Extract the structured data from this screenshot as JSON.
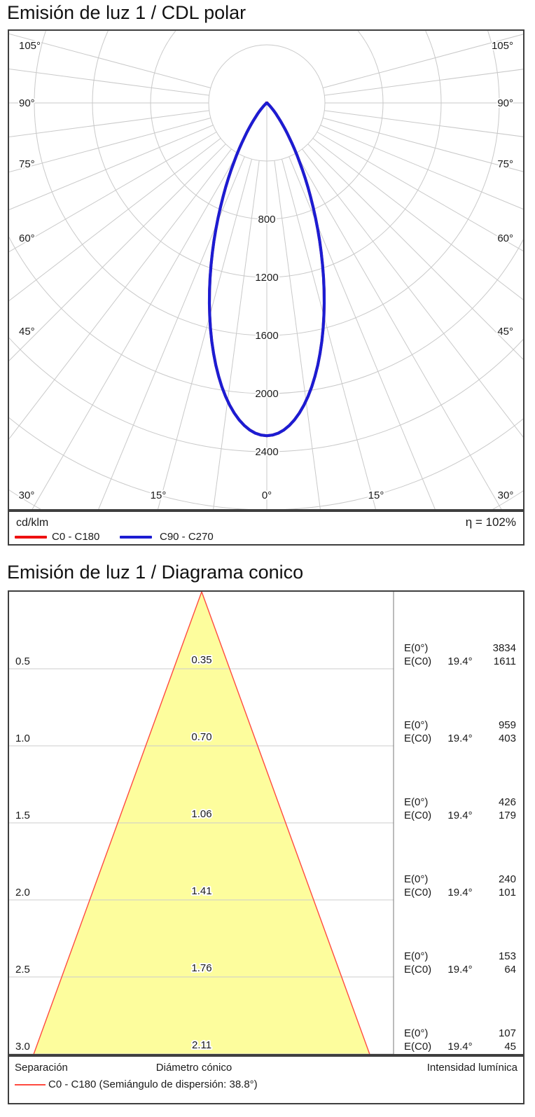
{
  "polar": {
    "title": "Emisión de luz 1 / CDL polar",
    "unit": "cd/klm",
    "efficiency": "η = 102%",
    "legend": [
      {
        "name": "C0 - C180",
        "color": "#ee1111"
      },
      {
        "name": "C90 - C270",
        "color": "#1c1cd2"
      }
    ],
    "angle_labels_side": [
      "105°",
      "90°",
      "75°",
      "60°",
      "45°"
    ],
    "angle_labels_bottom": [
      "30°",
      "15°",
      "0°",
      "15°",
      "30°"
    ],
    "ring_labels": [
      "800",
      "1200",
      "1600",
      "2000",
      "2400"
    ]
  },
  "cone": {
    "title": "Emisión de luz 1 / Diagrama conico",
    "e0_label": "E(0°)",
    "ec0_label": "E(C0)",
    "beam_angle": "19.4°",
    "cone_fill": "#fdfd9d",
    "cone_edge_color": "#ff4a40",
    "rows": [
      {
        "separation": "0.5",
        "diameter": "0.35",
        "e0": "3834",
        "ec0": "1611"
      },
      {
        "separation": "1.0",
        "diameter": "0.70",
        "e0": "959",
        "ec0": "403"
      },
      {
        "separation": "1.5",
        "diameter": "1.06",
        "e0": "426",
        "ec0": "179"
      },
      {
        "separation": "2.0",
        "diameter": "1.41",
        "e0": "240",
        "ec0": "101"
      },
      {
        "separation": "2.5",
        "diameter": "1.76",
        "e0": "153",
        "ec0": "64"
      },
      {
        "separation": "3.0",
        "diameter": "2.11",
        "e0": "107",
        "ec0": "45"
      }
    ],
    "footer": {
      "separation": "Separación",
      "diameter": "Diámetro cónico",
      "intensity": "Intensidad lumínica"
    },
    "legend": "C0 - C180 (Semiángulo de dispersión: 38.8°)"
  },
  "chart_data": [
    {
      "type": "line",
      "subtype": "polar-luminous-intensity",
      "title": "Emisión de luz 1 / CDL polar",
      "unit": "cd/klm",
      "efficiency_label": "η = 102%",
      "radial_ticks": [
        400,
        800,
        1200,
        1600,
        2000,
        2400,
        2800,
        3200
      ],
      "labeled_radial_ticks": [
        800,
        1200,
        1600,
        2000,
        2400
      ],
      "angle_ticks_deg": [
        -105,
        -97.5,
        -90,
        -82.5,
        -75,
        -67.5,
        -60,
        -52.5,
        -45,
        -37.5,
        -30,
        -22.5,
        -15,
        -7.5,
        0,
        7.5,
        15,
        22.5,
        30,
        37.5,
        45,
        52.5,
        60,
        67.5,
        75,
        82.5,
        90,
        97.5,
        105
      ],
      "labeled_angle_ticks_deg": [
        -105,
        -90,
        -75,
        -60,
        -45,
        -30,
        -15,
        0,
        15,
        30,
        45,
        60,
        75,
        90,
        105
      ],
      "series": [
        {
          "name": "C0 - C180",
          "color": "#ee1111",
          "peak_cd_per_klm": 2290,
          "half_value_angle_deg": 19.4,
          "angles_deg": [
            0,
            5,
            10,
            15,
            19.4,
            25,
            30,
            40,
            50,
            60,
            90
          ],
          "values": [
            2290,
            2180,
            1905,
            1520,
            1145,
            740,
            415,
            95,
            12,
            1,
            0
          ]
        },
        {
          "name": "C90 - C270",
          "color": "#1c1cd2",
          "peak_cd_per_klm": 2290,
          "half_value_angle_deg": 19.4,
          "angles_deg": [
            0,
            5,
            10,
            15,
            19.4,
            25,
            30,
            40,
            50,
            60,
            90
          ],
          "values": [
            2290,
            2180,
            1905,
            1520,
            1145,
            740,
            415,
            95,
            12,
            1,
            0
          ]
        }
      ]
    },
    {
      "type": "table",
      "subtype": "cone-diagram",
      "title": "Emisión de luz 1 / Diagrama conico",
      "beam_half_angle_deg": 19.4,
      "beam_full_angle_deg": 38.8,
      "columns": [
        "Separación",
        "Diámetro cónico",
        "E(0°)",
        "E(C0) 19.4°"
      ],
      "rows": [
        [
          0.5,
          0.35,
          3834,
          1611
        ],
        [
          1.0,
          0.7,
          959,
          403
        ],
        [
          1.5,
          1.06,
          426,
          179
        ],
        [
          2.0,
          1.41,
          240,
          101
        ],
        [
          2.5,
          1.76,
          153,
          64
        ],
        [
          3.0,
          2.11,
          107,
          45
        ]
      ]
    }
  ]
}
